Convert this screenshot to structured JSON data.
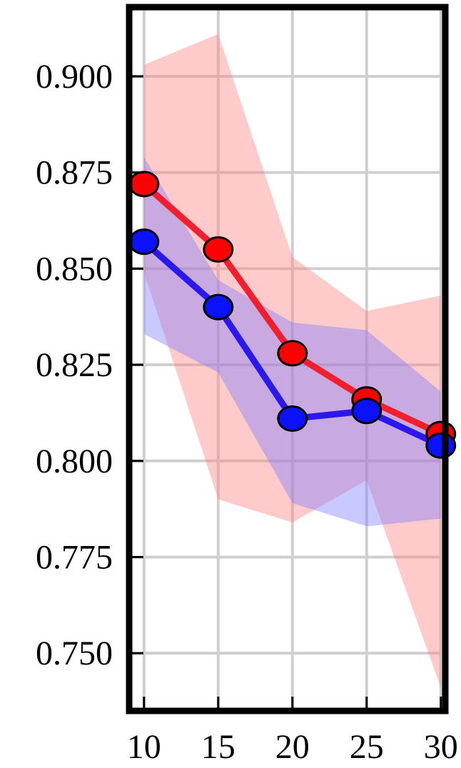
{
  "chart_data": {
    "type": "line",
    "title": "",
    "xlabel": "",
    "ylabel": "",
    "x": [
      10,
      15,
      20,
      25,
      30
    ],
    "xlim": [
      9,
      30.3
    ],
    "ylim": [
      0.735,
      0.918
    ],
    "xticks": [
      "10",
      "15",
      "20",
      "25",
      "30"
    ],
    "yticks": [
      "0.750",
      "0.775",
      "0.800",
      "0.825",
      "0.850",
      "0.875",
      "0.900"
    ],
    "ytick_values": [
      0.75,
      0.775,
      0.8,
      0.825,
      0.85,
      0.875,
      0.9
    ],
    "grid": true,
    "legend": "none",
    "series": [
      {
        "color": "#f41e2e",
        "marker_color": "#ff0000",
        "band_color": "#ff8080",
        "values": [
          0.872,
          0.855,
          0.828,
          0.816,
          0.807
        ],
        "band_upper": [
          0.903,
          0.911,
          0.853,
          0.839,
          0.843
        ],
        "band_lower": [
          0.849,
          0.79,
          0.784,
          0.795,
          0.741
        ]
      },
      {
        "color": "#2a18ee",
        "marker_color": "#0a12ff",
        "band_color": "#7f7fff",
        "values": [
          0.857,
          0.84,
          0.811,
          0.813,
          0.804
        ],
        "band_upper": [
          0.879,
          0.847,
          0.836,
          0.834,
          0.818
        ],
        "band_lower": [
          0.833,
          0.823,
          0.789,
          0.783,
          0.785
        ]
      }
    ]
  }
}
